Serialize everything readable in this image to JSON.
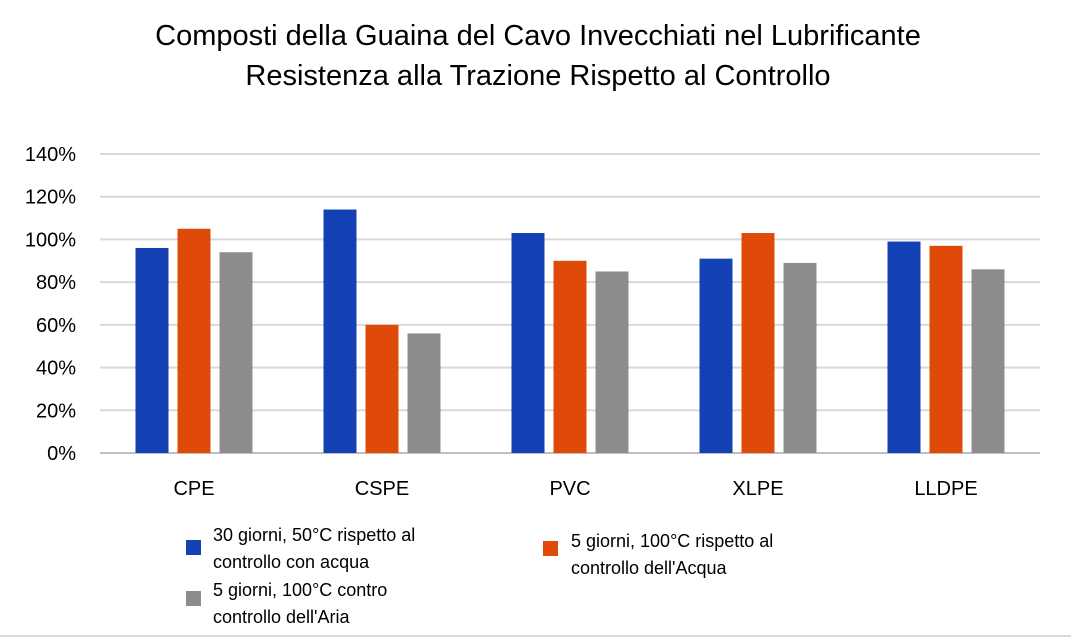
{
  "chart_data": {
    "type": "bar",
    "title": [
      "Composti della Guaina del Cavo Invecchiati nel Lubrificante",
      "Resistenza alla Trazione Rispetto al Controllo"
    ],
    "xlabel": "",
    "ylabel": "",
    "ylim": [
      0,
      140
    ],
    "yticks": [
      0,
      20,
      40,
      60,
      80,
      100,
      120,
      140
    ],
    "ytick_labels": [
      "0%",
      "20%",
      "40%",
      "60%",
      "80%",
      "100%",
      "120%",
      "140%"
    ],
    "grid": true,
    "categories": [
      "CPE",
      "CSPE",
      "PVC",
      "XLPE",
      "LLDPE"
    ],
    "series": [
      {
        "name": "30 giorni, 50°C rispetto al controllo con acqua",
        "legend_lines": [
          "30 giorni, 50°C rispetto al",
          "controllo con acqua"
        ],
        "color": "#1340b3",
        "values": [
          96,
          114,
          103,
          91,
          99
        ]
      },
      {
        "name": "5 giorni, 100°C rispetto al controllo dell'Acqua",
        "legend_lines": [
          "5 giorni, 100°C rispetto al",
          "controllo dell'Acqua"
        ],
        "color": "#df4a08",
        "values": [
          105,
          60,
          90,
          103,
          97
        ]
      },
      {
        "name": "5 giorni, 100°C contro controllo dell'Aria",
        "legend_lines": [
          "5 giorni, 100°C contro",
          "controllo dell'Aria"
        ],
        "color": "#8c8c8c",
        "values": [
          94,
          56,
          85,
          89,
          86
        ]
      }
    ],
    "legend_position": "bottom"
  }
}
